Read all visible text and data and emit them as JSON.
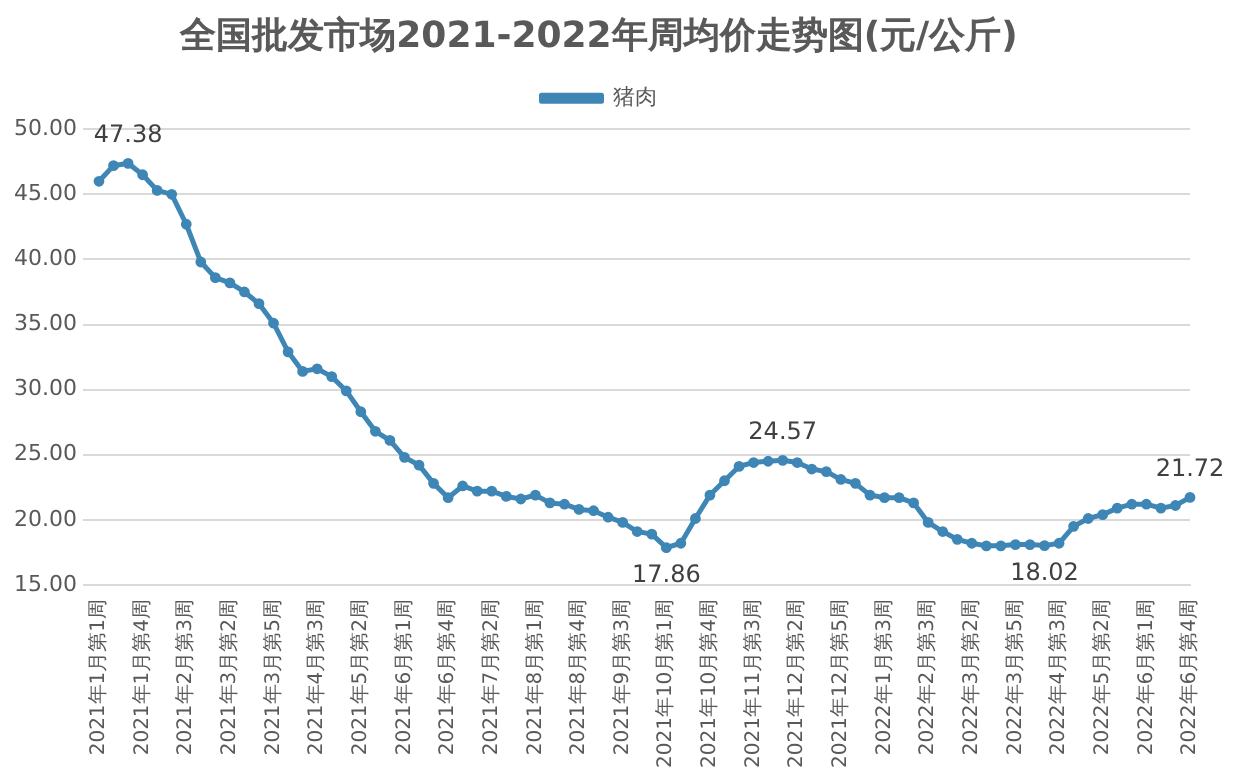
{
  "chart_data": {
    "type": "line",
    "title": "全国批发市场2021-2022年周均价走势图(元/公斤)",
    "categories": [
      "2021年1月第1周",
      null,
      null,
      "2021年1月第4周",
      null,
      null,
      "2021年2月第3周",
      null,
      null,
      "2021年3月第2周",
      null,
      null,
      "2021年3月第5周",
      null,
      null,
      "2021年4月第3周",
      null,
      null,
      "2021年5月第2周",
      null,
      null,
      "2021年6月第1周",
      null,
      null,
      "2021年6月第4周",
      null,
      null,
      "2021年7月第2周",
      null,
      null,
      "2021年8月第1周",
      null,
      null,
      "2021年8月第4周",
      null,
      null,
      "2021年9月第3周",
      null,
      null,
      "2021年10月第1周",
      null,
      null,
      "2021年10月第4周",
      null,
      null,
      "2021年11月第3周",
      null,
      null,
      "2021年12月第2周",
      null,
      null,
      "2021年12月第5周",
      null,
      null,
      "2022年1月第3周",
      null,
      null,
      "2022年2月第3周",
      null,
      null,
      "2022年3月第2周",
      null,
      null,
      "2022年3月第5周",
      null,
      null,
      "2022年4月第3周",
      null,
      null,
      "2022年5月第2周",
      null,
      null,
      "2022年6月第1周",
      null,
      null,
      "2022年6月第4周"
    ],
    "series": [
      {
        "name": "猪肉",
        "color": "#3e86b5",
        "values": [
          46.0,
          47.2,
          47.38,
          46.5,
          45.3,
          45.0,
          42.7,
          39.8,
          38.6,
          38.2,
          37.5,
          36.6,
          35.1,
          32.9,
          31.4,
          31.6,
          31.0,
          29.9,
          28.3,
          26.8,
          26.1,
          24.8,
          24.2,
          22.8,
          21.7,
          22.6,
          22.2,
          22.2,
          21.8,
          21.6,
          21.9,
          21.3,
          21.2,
          20.8,
          20.7,
          20.2,
          19.8,
          19.1,
          18.9,
          17.86,
          18.2,
          20.1,
          21.9,
          23.0,
          24.1,
          24.4,
          24.5,
          24.57,
          24.4,
          23.9,
          23.7,
          23.1,
          22.8,
          21.9,
          21.7,
          21.7,
          21.3,
          19.8,
          19.1,
          18.5,
          18.2,
          18.0,
          18.0,
          18.1,
          18.1,
          18.02,
          18.2,
          19.5,
          20.1,
          20.4,
          20.9,
          21.2,
          21.2,
          20.9,
          21.1,
          21.72
        ],
        "value_labels": [
          null,
          null,
          "47.38",
          null,
          null,
          null,
          null,
          null,
          null,
          null,
          null,
          null,
          null,
          null,
          null,
          null,
          null,
          null,
          null,
          null,
          null,
          null,
          null,
          null,
          null,
          null,
          null,
          null,
          null,
          null,
          null,
          null,
          null,
          null,
          null,
          null,
          null,
          null,
          null,
          "17.86",
          null,
          null,
          null,
          null,
          null,
          null,
          null,
          "24.57",
          null,
          null,
          null,
          null,
          null,
          null,
          null,
          null,
          null,
          null,
          null,
          null,
          null,
          null,
          null,
          null,
          null,
          "18.02",
          null,
          null,
          null,
          null,
          null,
          null,
          null,
          null,
          null,
          "21.72"
        ]
      }
    ],
    "ylim": [
      15,
      50
    ],
    "yticks": [
      {
        "value": 15,
        "label": "15.00"
      },
      {
        "value": 20,
        "label": "20.00"
      },
      {
        "value": 25,
        "label": "25.00"
      },
      {
        "value": 30,
        "label": "30.00"
      },
      {
        "value": 35,
        "label": "35.00"
      },
      {
        "value": 40,
        "label": "40.00"
      },
      {
        "value": 45,
        "label": "45.00"
      },
      {
        "value": 50,
        "label": "50.00"
      }
    ],
    "grid": "y",
    "legend": "top",
    "marker": "circle",
    "line_style": "solid"
  }
}
